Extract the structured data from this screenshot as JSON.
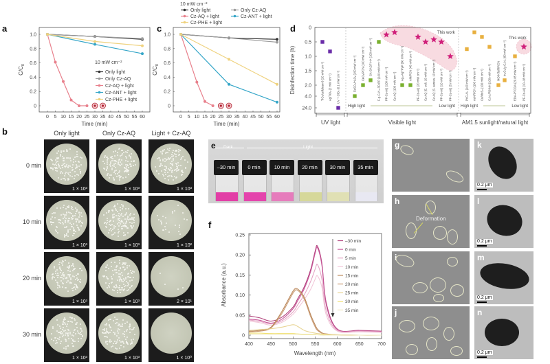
{
  "panel_labels": {
    "a": "a",
    "b": "b",
    "c": "c",
    "d": "d",
    "e": "e",
    "f": "f",
    "g": "g",
    "h": "h",
    "i": "i",
    "j": "j",
    "k": "k",
    "l": "l",
    "m": "m",
    "n": "n"
  },
  "colors": {
    "only_light": "#333333",
    "only_czaq": "#9a9a9a",
    "czaq_light": "#e8808c",
    "czant_light": "#35a6c8",
    "czphe_light": "#efd27e",
    "uv": "#6a2ca8",
    "visible": "#7ab030",
    "sunlight": "#e8b040",
    "this_work": "#d0207a"
  },
  "chart_data": [
    {
      "type": "line",
      "panel": "a",
      "xlabel": "Time (min)",
      "ylabel_main": "C/C",
      "ylabel_sub": "0",
      "xticks": [
        "0",
        "5",
        "10",
        "15",
        "20",
        "25",
        "30",
        "35",
        "40",
        "45",
        "50",
        "55",
        "60"
      ],
      "yticks": [
        "0",
        "0.2",
        "0.4",
        "0.6",
        "0.8",
        "1.0"
      ],
      "xlim": [
        0,
        60
      ],
      "ylim": [
        0,
        1.0
      ],
      "legend_title": "10 mW cm⁻²",
      "legend_position": "center-right",
      "series": [
        {
          "name": "Only light",
          "color": "#333333",
          "x": [
            0,
            30,
            60
          ],
          "y": [
            1.0,
            0.97,
            0.93
          ]
        },
        {
          "name": "Only Cz-AQ",
          "color": "#9a9a9a",
          "x": [
            0,
            30,
            60
          ],
          "y": [
            1.0,
            0.97,
            0.94
          ]
        },
        {
          "name": "Cz-AQ + light",
          "color": "#e8808c",
          "x": [
            0,
            5,
            10,
            15,
            20,
            25,
            30,
            35
          ],
          "y": [
            1.0,
            0.61,
            0.34,
            0.08,
            0,
            0,
            0,
            0
          ],
          "circled": [
            30,
            35
          ]
        },
        {
          "name": "Cz-ANT + light",
          "color": "#35a6c8",
          "x": [
            0,
            30,
            60
          ],
          "y": [
            1.0,
            0.86,
            0.73
          ]
        },
        {
          "name": "Cz-PHE + light",
          "color": "#efd27e",
          "x": [
            0,
            30,
            60
          ],
          "y": [
            1.0,
            0.9,
            0.84
          ]
        }
      ]
    },
    {
      "type": "line",
      "panel": "c",
      "xlabel": "Time (min)",
      "ylabel_main": "C/C",
      "ylabel_sub": "0",
      "xticks": [
        "0",
        "5",
        "10",
        "15",
        "20",
        "25",
        "30",
        "35",
        "40",
        "45",
        "50",
        "55",
        "60"
      ],
      "yticks": [
        "0",
        "0.2",
        "0.4",
        "0.6",
        "0.8",
        "1.0"
      ],
      "xlim": [
        0,
        60
      ],
      "ylim": [
        0,
        1.0
      ],
      "legend_title": "10 mW cm⁻²",
      "legend_position": "top",
      "series": [
        {
          "name": "Only light",
          "color": "#333333",
          "x": [
            0,
            30,
            60
          ],
          "y": [
            1.0,
            0.95,
            0.93
          ]
        },
        {
          "name": "Only Cz-AQ",
          "color": "#9a9a9a",
          "x": [
            0,
            30,
            60
          ],
          "y": [
            1.0,
            0.95,
            0.89
          ]
        },
        {
          "name": "Cz-AQ + light",
          "color": "#e8808c",
          "x": [
            0,
            10,
            15,
            20,
            25,
            30
          ],
          "y": [
            1.0,
            0.33,
            0.06,
            0,
            0,
            0
          ],
          "circled": [
            25,
            30
          ]
        },
        {
          "name": "Cz-ANT + light",
          "color": "#35a6c8",
          "x": [
            0,
            30,
            60
          ],
          "y": [
            1.0,
            0.3,
            0.05
          ]
        },
        {
          "name": "Cz-PHE + light",
          "color": "#efd27e",
          "x": [
            0,
            30,
            60
          ],
          "y": [
            1.0,
            0.65,
            0.3
          ]
        }
      ]
    },
    {
      "type": "scatter",
      "panel": "d",
      "ylabel": "Disinfection time (h)",
      "yticks": [
        "0",
        "0.5",
        "1.0",
        "1.5",
        "2.0",
        "4.0",
        "24.0"
      ],
      "y_axis": "inverted, broken above 2.0",
      "groups": [
        {
          "name": "UV light",
          "gradient": ""
        },
        {
          "name": "Visible light",
          "gradient": {
            "from": "High light",
            "to": "Low light"
          }
        },
        {
          "name": "AM1.5 sunlight/natural light",
          "gradient": {
            "from": "High light",
            "to": "Low light"
          }
        }
      ],
      "annotations": [
        "This work",
        "This work"
      ],
      "points": [
        {
          "group": "UV light",
          "label": "TiO₂/cellulose-8 (20 mW cm⁻²)",
          "value": 0.5,
          "marker": "square",
          "color": "#6a2ca8"
        },
        {
          "group": "UV light",
          "label": "Ag/TiO₂ (2 mW cm⁻²)",
          "value": 0.83,
          "marker": "square",
          "color": "#6a2ca8"
        },
        {
          "group": "UV light",
          "label": "UV + ClO₂ (0.1 mW cm⁻²)",
          "value": 24.0,
          "marker": "square",
          "color": "#6a2ca8"
        },
        {
          "group": "Visible light",
          "label": "FeSO₄/H₂O₂ (150 mW cm⁻²)",
          "value": 4.0,
          "marker": "square",
          "color": "#7ab030"
        },
        {
          "group": "Visible light",
          "label": "CeO₂/PCN (100 mW cm⁻²)",
          "value": 2.0,
          "marker": "square",
          "color": "#7ab030"
        },
        {
          "group": "Visible light",
          "label": "SA-SAGF-H+ (100 mW cm⁻²)",
          "value": 1.83,
          "marker": "square",
          "color": "#7ab030"
        },
        {
          "group": "Visible light",
          "label": "F-g-C₃N₄-3D-EP (100 mW cm⁻²)",
          "value": 0.5,
          "marker": "square",
          "color": "#7ab030"
        },
        {
          "group": "Visible light",
          "label": "PF-Cz-AQ (100 mW cm⁻²)",
          "value": 0.25,
          "marker": "star",
          "color": "#d0207a"
        },
        {
          "group": "Visible light",
          "label": "Cz-AQ (100 mW cm⁻²)",
          "value": 0.17,
          "marker": "star",
          "color": "#d0207a"
        },
        {
          "group": "Visible light",
          "label": "Ag₃-AgTPyP (80 mW cm⁻²)",
          "value": 2.0,
          "marker": "square",
          "color": "#7ab030"
        },
        {
          "group": "Visible light",
          "label": "AM/PCN (40 mW cm⁻²)",
          "value": 2.0,
          "marker": "square",
          "color": "#7ab030"
        },
        {
          "group": "Visible light",
          "label": "PF-Cz-AQ (20 mW cm⁻²)",
          "value": 0.33,
          "marker": "star",
          "color": "#d0207a"
        },
        {
          "group": "Visible light",
          "label": "Cz-AQ (E. coli, 10 mW cm⁻²)",
          "value": 0.5,
          "marker": "star",
          "color": "#d0207a"
        },
        {
          "group": "Visible light",
          "label": "Cz-AQ (S. aureus, 10 mW cm⁻²)",
          "value": 0.42,
          "marker": "star",
          "color": "#d0207a"
        },
        {
          "group": "Visible light",
          "label": "PF-Cz-AQ (10 mW cm⁻²)",
          "value": 0.5,
          "marker": "star",
          "color": "#d0207a"
        },
        {
          "group": "Visible light",
          "label": "PF-Cz-AQ (5 mW cm⁻²)",
          "value": 1.0,
          "marker": "star",
          "color": "#d0207a"
        },
        {
          "group": "AM1.5 sunlight/natural light",
          "label": "Pt/C₃N₄ (100 mW cm⁻²)",
          "value": 0.75,
          "marker": "square",
          "color": "#e8b040"
        },
        {
          "group": "AM1.5 sunlight/natural light",
          "label": "AuNR/CN (100 mW cm⁻²)",
          "value": 0.17,
          "marker": "square",
          "color": "#e8b040"
        },
        {
          "group": "AM1.5 sunlight/natural light",
          "label": "Cu/MoS₂ (100 mW cm⁻²)",
          "value": 0.33,
          "marker": "square",
          "color": "#e8b040"
        },
        {
          "group": "AM1.5 sunlight/natural light",
          "label": "C₃N₄/PDINH (100 mW cm⁻²)",
          "value": 0.67,
          "marker": "square",
          "color": "#e8b040"
        },
        {
          "group": "AM1.5 sunlight/natural light",
          "label": "MOINTs/RP/CN",
          "value": 2.0,
          "marker": "square",
          "color": "#e8b040"
        },
        {
          "group": "AM1.5 sunlight/natural light",
          "label": "In₂O₃/g-C₃N₄ (80 mW cm⁻²)",
          "value": 1.83,
          "marker": "square",
          "color": "#e8b040"
        },
        {
          "group": "AM1.5 sunlight/natural light",
          "label": "EDA-PTCDA (20.85 mW cm⁻²)",
          "value": 1.0,
          "marker": "square",
          "color": "#e8b040"
        },
        {
          "group": "AM1.5 sunlight/natural light",
          "label": "PF-Cz-AQ (10–18 mW cm⁻²)",
          "value": 0.67,
          "marker": "star",
          "color": "#d0207a"
        }
      ]
    },
    {
      "type": "line",
      "panel": "f",
      "xlabel": "Wavelength (nm)",
      "ylabel": "Absorbance (a.u.)",
      "xticks": [
        "400",
        "450",
        "500",
        "550",
        "600",
        "650",
        "700"
      ],
      "yticks": [
        "0",
        "0.05",
        "0.10",
        "0.15",
        "0.20",
        "0.25"
      ],
      "xlim": [
        400,
        700
      ],
      "ylim": [
        0,
        0.25
      ],
      "legend_position": "top-right",
      "x": [
        400,
        425,
        450,
        475,
        500,
        510,
        525,
        540,
        550,
        555,
        565,
        575,
        600,
        650,
        700
      ],
      "series": [
        {
          "name": "–30 min",
          "color": "#b0407a",
          "y": [
            0.048,
            0.043,
            0.035,
            0.045,
            0.07,
            0.09,
            0.12,
            0.165,
            0.21,
            0.222,
            0.18,
            0.08,
            0.015,
            0.012,
            0.01
          ]
        },
        {
          "name": "0 min",
          "color": "#c8589a",
          "y": [
            0.04,
            0.037,
            0.03,
            0.04,
            0.066,
            0.085,
            0.115,
            0.16,
            0.205,
            0.218,
            0.175,
            0.075,
            0.014,
            0.011,
            0.009
          ]
        },
        {
          "name": "5 min",
          "color": "#e4a4c4",
          "y": [
            0.038,
            0.034,
            0.028,
            0.036,
            0.058,
            0.075,
            0.1,
            0.135,
            0.165,
            0.176,
            0.14,
            0.06,
            0.012,
            0.01,
            0.008
          ]
        },
        {
          "name": "10 min",
          "color": "#f2c8da",
          "y": [
            0.035,
            0.031,
            0.025,
            0.032,
            0.052,
            0.066,
            0.088,
            0.115,
            0.14,
            0.148,
            0.12,
            0.05,
            0.01,
            0.008,
            0.007
          ]
        },
        {
          "name": "15 min",
          "color": "#b88456",
          "y": [
            0.01,
            0.012,
            0.02,
            0.06,
            0.11,
            0.115,
            0.095,
            0.05,
            0.025,
            0.015,
            0.006,
            0.003,
            0.001,
            0,
            0
          ]
        },
        {
          "name": "20 min",
          "color": "#c99a72",
          "y": [
            0.008,
            0.01,
            0.018,
            0.055,
            0.105,
            0.112,
            0.09,
            0.045,
            0.02,
            0.012,
            0.005,
            0.002,
            0,
            0,
            0
          ]
        },
        {
          "name": "25 min",
          "color": "#e8d494",
          "y": [
            0.012,
            0.014,
            0.016,
            0.02,
            0.026,
            0.022,
            0.012,
            0.007,
            0.005,
            0.004,
            0.003,
            0.002,
            0.001,
            0,
            0
          ]
        },
        {
          "name": "30 min",
          "color": "#f0e070",
          "y": [
            0.005,
            0.005,
            0.004,
            0.004,
            0.004,
            0.003,
            0.002,
            0.002,
            0.002,
            0.001,
            0.001,
            0.001,
            0,
            0,
            0
          ]
        },
        {
          "name": "35 min",
          "color": "#f2ecc4",
          "y": [
            0.002,
            0.002,
            0.002,
            0.002,
            0.002,
            0.002,
            0.001,
            0.001,
            0.001,
            0.001,
            0,
            0,
            0,
            0,
            0
          ]
        }
      ]
    }
  ],
  "plates": {
    "columns": [
      "Only light",
      "Only Cz-AQ",
      "Light + Cz-AQ"
    ],
    "rows": [
      {
        "time": "0 min",
        "counts": [
          "1 × 10³",
          "1 × 10³",
          "1 × 10³"
        ]
      },
      {
        "time": "10 min",
        "counts": [
          "1 × 10³",
          "1 × 10³",
          "1 × 10²"
        ]
      },
      {
        "time": "20 min",
        "counts": [
          "1 × 10³",
          "1 × 10³",
          "2 × 10¹"
        ]
      },
      {
        "time": "30 min",
        "counts": [
          "1 × 10³",
          "1 × 10³",
          "1 × 10⁰"
        ]
      }
    ]
  },
  "vials": {
    "dark_label": "Dark",
    "light_label": "Light",
    "items": [
      {
        "time": "–30 min",
        "color": "#e23ea6"
      },
      {
        "time": "0 min",
        "color": "#e444ac"
      },
      {
        "time": "10 min",
        "color": "#e67cbc"
      },
      {
        "time": "20 min",
        "color": "#d6d89a"
      },
      {
        "time": "30 min",
        "color": "#e0e0b4"
      },
      {
        "time": "35 min",
        "color": "#e8e8f2"
      }
    ]
  },
  "micrographs": {
    "deformation_label": "Deformation",
    "scale_bar": "0.2 μm"
  }
}
